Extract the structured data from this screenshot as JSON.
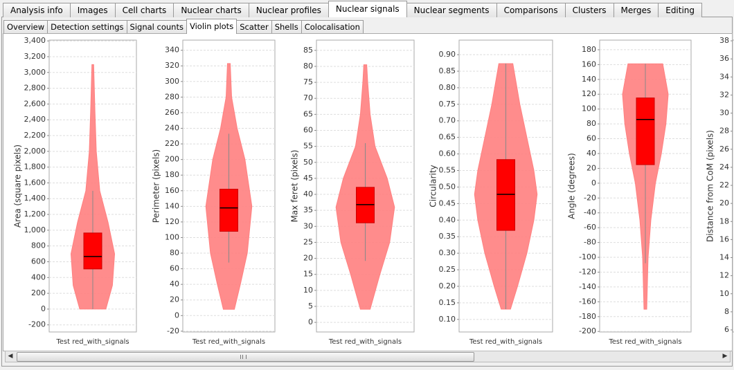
{
  "tabs": [
    "Analysis info",
    "Images",
    "Cell charts",
    "Nuclear charts",
    "Nuclear profiles",
    "Nuclear signals",
    "Nuclear segments",
    "Comparisons",
    "Clusters",
    "Merges",
    "Editing"
  ],
  "active_tab": 5,
  "subtabs": [
    "Overview",
    "Detection settings",
    "Signal counts",
    "Violin plots",
    "Scatter",
    "Shells",
    "Colocalisation"
  ],
  "active_subtab": 3,
  "chart_data": [
    {
      "type": "violin",
      "y_label": "Area (square pixels)",
      "categories": [
        "Test red_with_signals"
      ],
      "ylim": [
        -290,
        3410
      ],
      "grid": true,
      "color": "#ff8080",
      "box_color": "#ff0000",
      "yticks": [
        -200,
        0,
        200,
        400,
        600,
        800,
        {
          "value": 1000,
          "label": "1,000"
        },
        {
          "value": 1200,
          "label": "1,200"
        },
        {
          "value": 1400,
          "label": "1,400"
        },
        {
          "value": 1600,
          "label": "1,600"
        },
        {
          "value": 1800,
          "label": "1,800"
        },
        {
          "value": 2000,
          "label": "2,000"
        },
        {
          "value": 2200,
          "label": "2,200"
        },
        {
          "value": 2400,
          "label": "2,400"
        },
        {
          "value": 2600,
          "label": "2,600"
        },
        {
          "value": 2800,
          "label": "2,800"
        },
        {
          "value": 3000,
          "label": "3,000"
        },
        {
          "value": 3200,
          "label": "3,200"
        },
        {
          "value": 3400,
          "label": "3,400"
        }
      ],
      "box": {
        "min": 0,
        "q1": 509,
        "median": 667,
        "q3": 965,
        "max": 1500
      },
      "violin": {
        "y": [
          0,
          300,
          700,
          1100,
          1500,
          2000,
          2500,
          3100
        ],
        "width": [
          0.3,
          0.45,
          0.5,
          0.35,
          0.16,
          0.08,
          0.05,
          0.02
        ]
      }
    },
    {
      "type": "violin",
      "y_label": "Perimeter (pixels)",
      "categories": [
        "Test red_with_signals"
      ],
      "ylim": [
        -21,
        353
      ],
      "grid": true,
      "color": "#ff8080",
      "box_color": "#ff0000",
      "yticks": [
        -20,
        0,
        20,
        40,
        60,
        80,
        100,
        120,
        140,
        160,
        180,
        200,
        220,
        240,
        260,
        280,
        300,
        320,
        340
      ],
      "box": {
        "min": 68,
        "q1": 108,
        "median": 138,
        "q3": 162,
        "max": 233
      },
      "violin": {
        "y": [
          8,
          40,
          80,
          140,
          200,
          240,
          280,
          323
        ],
        "width": [
          0.12,
          0.25,
          0.4,
          0.5,
          0.35,
          0.18,
          0.06,
          0.03
        ]
      }
    },
    {
      "type": "violin",
      "y_label": "Max feret (pixels)",
      "categories": [
        "Test red_with_signals"
      ],
      "ylim": [
        -3,
        88.2
      ],
      "grid": true,
      "color": "#ff8080",
      "box_color": "#ff0000",
      "yticks": [
        0,
        5,
        10,
        15,
        20,
        25,
        30,
        35,
        40,
        45,
        50,
        55,
        60,
        65,
        70,
        75,
        80,
        85
      ],
      "box": {
        "min": 19.2,
        "q1": 31.1,
        "median": 36.8,
        "q3": 42.2,
        "max": 56
      },
      "violin": {
        "y": [
          4.1,
          15,
          25,
          36,
          45,
          55,
          65,
          75,
          80.5
        ],
        "width": [
          0.1,
          0.3,
          0.5,
          0.6,
          0.45,
          0.2,
          0.1,
          0.05,
          0.03
        ]
      }
    },
    {
      "type": "violin",
      "y_label": "Circularity",
      "categories": [
        "Test red_with_signals"
      ],
      "ylim": [
        0.062,
        0.944
      ],
      "grid": true,
      "color": "#ff8080",
      "box_color": "#ff0000",
      "yticks": [
        {
          "value": 0.1,
          "label": "0.10"
        },
        0.15,
        {
          "value": 0.2,
          "label": "0.20"
        },
        0.25,
        {
          "value": 0.3,
          "label": "0.30"
        },
        0.35,
        {
          "value": 0.4,
          "label": "0.40"
        },
        0.45,
        {
          "value": 0.5,
          "label": "0.50"
        },
        0.55,
        {
          "value": 0.6,
          "label": "0.60"
        },
        0.65,
        {
          "value": 0.7,
          "label": "0.70"
        },
        0.75,
        {
          "value": 0.8,
          "label": "0.80"
        },
        0.85,
        {
          "value": 0.9,
          "label": "0.90"
        }
      ],
      "box": {
        "min": 0.131,
        "q1": 0.369,
        "median": 0.478,
        "q3": 0.583,
        "max": 0.873
      },
      "violin": {
        "y": [
          0.131,
          0.2,
          0.3,
          0.4,
          0.478,
          0.55,
          0.65,
          0.75,
          0.873
        ],
        "width": [
          0.1,
          0.25,
          0.45,
          0.6,
          0.67,
          0.6,
          0.45,
          0.3,
          0.15
        ]
      }
    },
    {
      "type": "violin",
      "y_label": "Angle (degrees)",
      "categories": [
        "Test red_with_signals"
      ],
      "ylim": [
        -200.7,
        193
      ],
      "grid": true,
      "color": "#ff8080",
      "box_color": "#ff0000",
      "yticks": [
        -200,
        -180,
        -160,
        -140,
        -120,
        -100,
        -80,
        -60,
        -40,
        -20,
        0,
        20,
        40,
        60,
        80,
        100,
        120,
        140,
        160,
        180
      ],
      "box": {
        "min": -108,
        "q1": 25,
        "median": 86,
        "q3": 115,
        "max": 161
      },
      "violin": {
        "y": [
          -170,
          -100,
          -50,
          0,
          40,
          80,
          120,
          161
        ],
        "width": [
          0.03,
          0.06,
          0.12,
          0.22,
          0.35,
          0.45,
          0.5,
          0.38
        ]
      }
    },
    {
      "type": "violin",
      "y_label": "Distance from CoM (pixels)",
      "ylim": [
        5.77,
        38.08
      ],
      "grid": true,
      "yticks": [
        6,
        8,
        10,
        12,
        14,
        16,
        18,
        20,
        22,
        24,
        26,
        28,
        30,
        32,
        34,
        36,
        38
      ]
    }
  ]
}
